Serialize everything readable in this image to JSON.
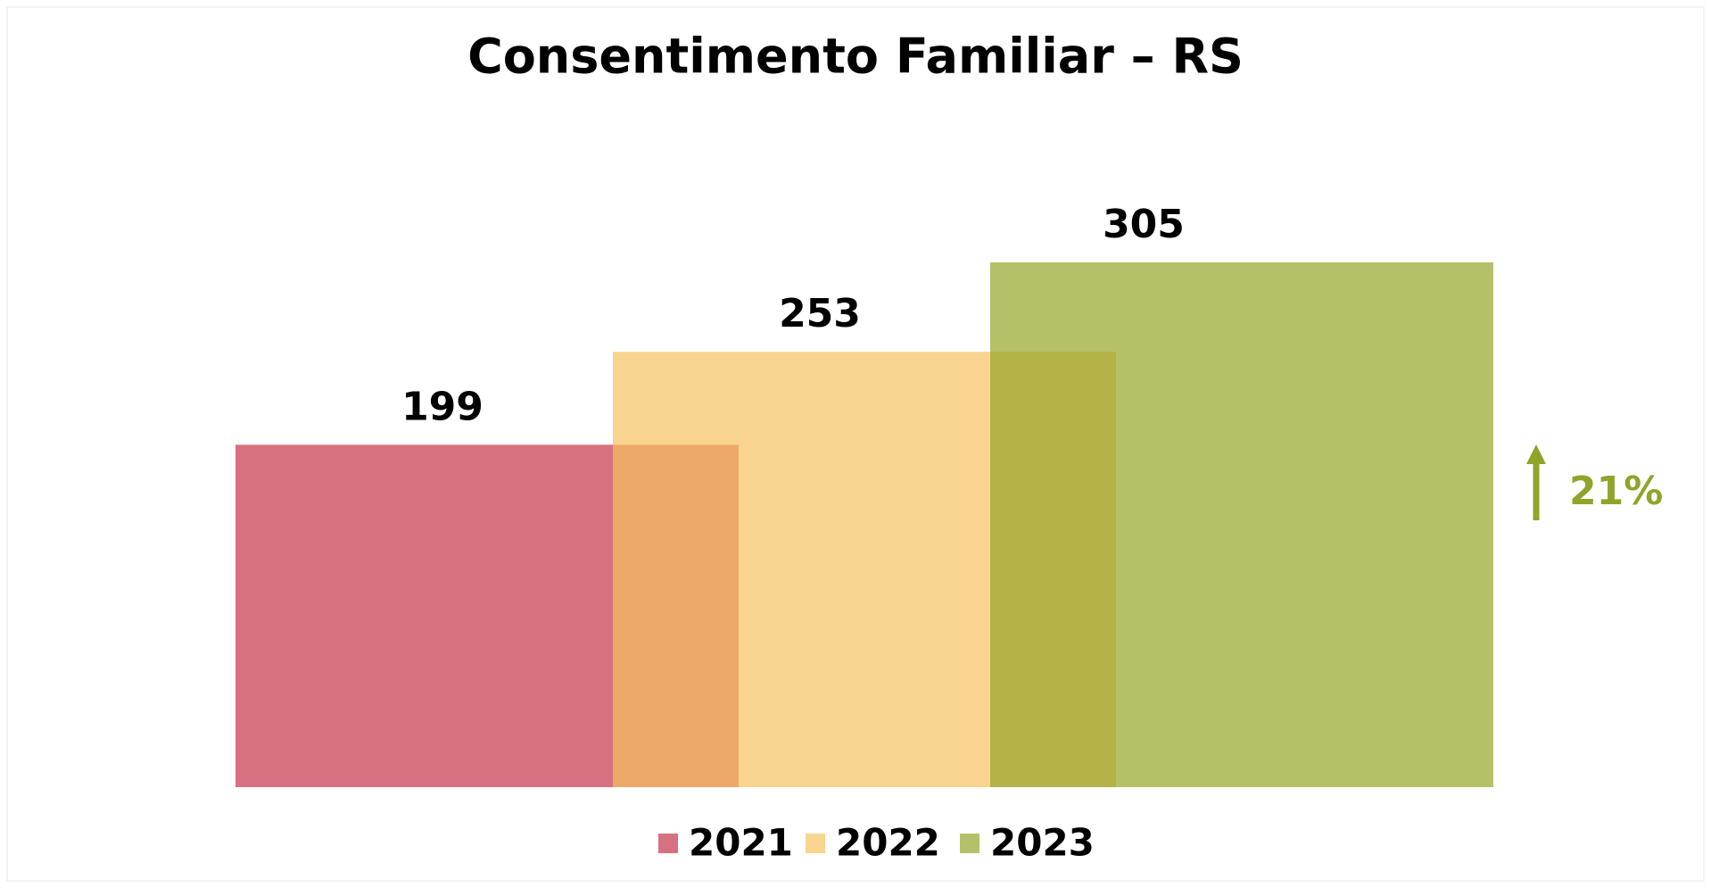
{
  "chart_data": {
    "type": "bar",
    "title": "Consentimento Familiar – RS",
    "series": [
      {
        "name": "2021",
        "color": "#c6334a",
        "values": [
          199
        ]
      },
      {
        "name": "2022",
        "color": "#f7c25f",
        "values": [
          253
        ]
      },
      {
        "name": "2023",
        "color": "#95a52a",
        "values": [
          305
        ]
      }
    ],
    "annotation": "21%",
    "annotation_color": "#8ea52a",
    "legend": "bottom"
  }
}
